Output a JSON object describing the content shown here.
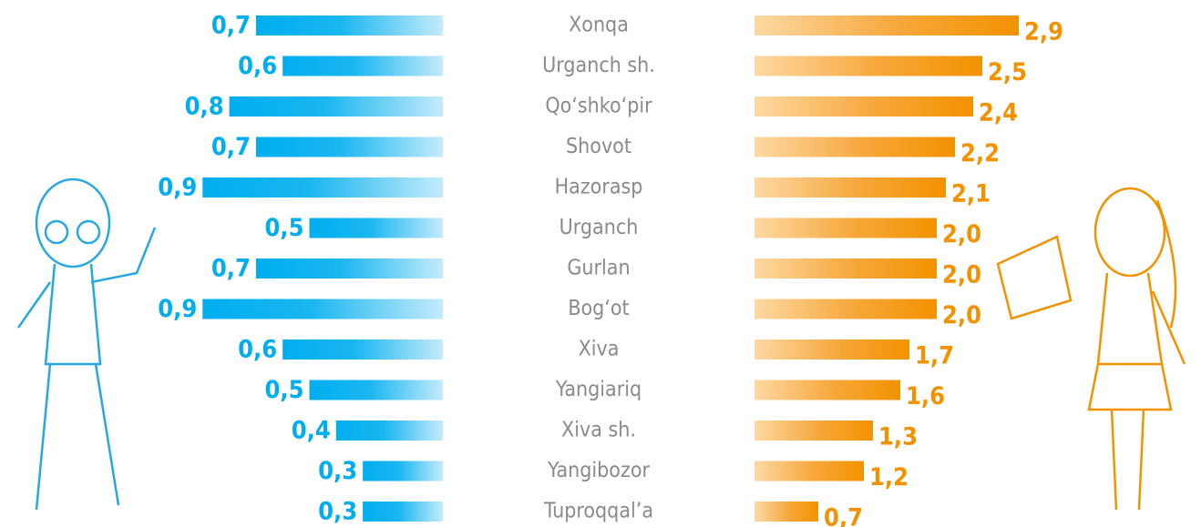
{
  "chart_data": {
    "type": "butterfly-bar",
    "categories": [
      "Xonqa",
      "Urganch sh.",
      "Qo‘shko‘pir",
      "Shovot",
      "Hazorasp",
      "Urganch",
      "Gurlan",
      "Bog‘ot",
      "Xiva",
      "Yangiariq",
      "Xiva sh.",
      "Yangibozor",
      "Tuproqqal’a"
    ],
    "series": [
      {
        "color": "#00aeef",
        "values": [
          0.7,
          0.6,
          0.8,
          0.7,
          0.9,
          0.5,
          0.7,
          0.9,
          0.6,
          0.5,
          0.4,
          0.3,
          0.3
        ],
        "value_labels": [
          "0,7",
          "0,6",
          "0,8",
          "0,7",
          "0,9",
          "0,5",
          "0,7",
          "0,9",
          "0,6",
          "0,5",
          "0,4",
          "0,3",
          "0,3"
        ]
      },
      {
        "color": "#f39200",
        "values": [
          2.9,
          2.5,
          2.4,
          2.2,
          2.1,
          2.0,
          2.0,
          2.0,
          1.7,
          1.6,
          1.3,
          1.2,
          0.7
        ],
        "value_labels": [
          "2,9",
          "2,5",
          "2,4",
          "2,2",
          "2,1",
          "2,0",
          "2,0",
          "2,0",
          "1,7",
          "1,6",
          "1,3",
          "1,2",
          "0,7"
        ]
      }
    ]
  }
}
